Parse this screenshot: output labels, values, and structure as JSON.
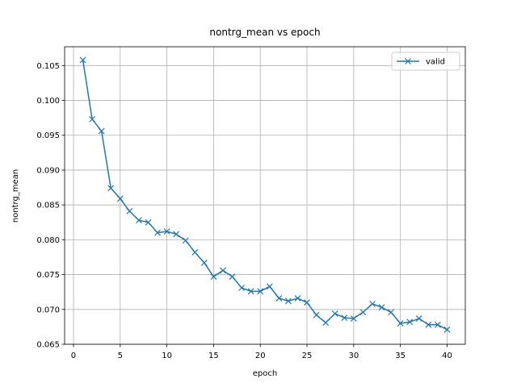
{
  "chart_data": {
    "type": "line",
    "title": "nontrg_mean vs epoch",
    "xlabel": "epoch",
    "ylabel": "nontrg_mean",
    "x": [
      1,
      2,
      3,
      4,
      5,
      6,
      7,
      8,
      9,
      10,
      11,
      12,
      13,
      14,
      15,
      16,
      17,
      18,
      19,
      20,
      21,
      22,
      23,
      24,
      25,
      26,
      27,
      28,
      29,
      30,
      31,
      32,
      33,
      34,
      35,
      36,
      37,
      38,
      39,
      40
    ],
    "series": [
      {
        "name": "valid",
        "color": "#1f77b4",
        "marker": "x",
        "values": [
          0.1058,
          0.0973,
          0.0956,
          0.0874,
          0.0859,
          0.0841,
          0.0828,
          0.0825,
          0.081,
          0.0812,
          0.0808,
          0.0799,
          0.0782,
          0.0767,
          0.0747,
          0.0756,
          0.0747,
          0.0731,
          0.0726,
          0.0726,
          0.0733,
          0.0716,
          0.0712,
          0.0716,
          0.071,
          0.0692,
          0.0681,
          0.0694,
          0.0688,
          0.0687,
          0.0696,
          0.0708,
          0.0703,
          0.0696,
          0.068,
          0.0682,
          0.0687,
          0.0678,
          0.0678,
          0.0671
        ]
      }
    ],
    "xlim": [
      -0.95,
      41.95
    ],
    "xticks": [
      0,
      5,
      10,
      15,
      20,
      25,
      30,
      35,
      40
    ],
    "ylim": [
      0.065,
      0.1077
    ],
    "yticks": [
      0.065,
      {
        "value": 0.07,
        "label": "0.070"
      },
      0.075,
      {
        "value": 0.08,
        "label": "0.080"
      },
      0.085,
      {
        "value": 0.09,
        "label": "0.090"
      },
      0.095,
      {
        "value": 0.1,
        "label": "0.100"
      },
      0.105
    ],
    "grid": true,
    "legend": "upper right"
  }
}
